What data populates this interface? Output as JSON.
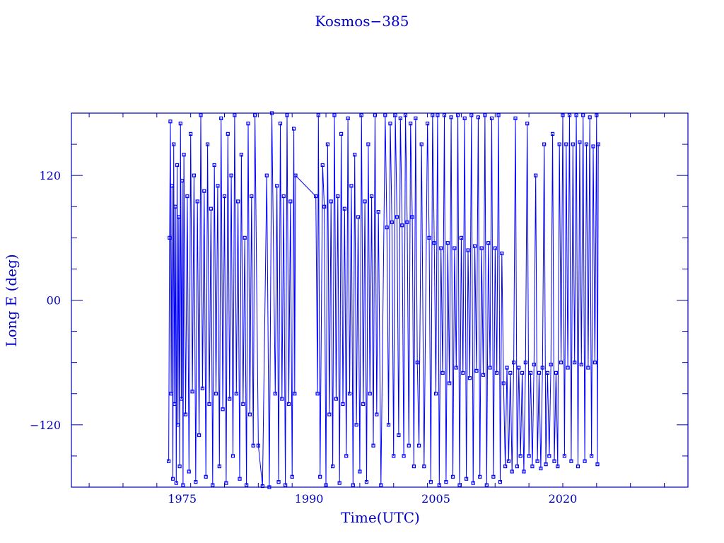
{
  "chart_data": {
    "type": "line",
    "title": "Kosmos−385",
    "xlabel": "Time(UTC)",
    "ylabel": "Long E (deg)",
    "xlim": [
      1961.9,
      2034.8
    ],
    "ylim": [
      -180,
      180
    ],
    "x_ticks": [
      1975,
      1990,
      2005,
      2020
    ],
    "x_tick_labels": [
      "1975",
      "1990",
      "2005",
      "2020"
    ],
    "y_ticks": [
      -120,
      0,
      120
    ],
    "y_tick_labels": [
      "−120",
      "00",
      "120"
    ],
    "grid": false,
    "marker": "square",
    "colors": {
      "series": "#0000ff",
      "axes": "#0000b4",
      "text": "#0000c8"
    },
    "series": [
      {
        "points": [
          [
            1973.4,
            -155
          ],
          [
            1973.5,
            60
          ],
          [
            1973.6,
            172
          ],
          [
            1973.7,
            -90
          ],
          [
            1973.8,
            110
          ],
          [
            1973.9,
            -172
          ],
          [
            1974.0,
            150
          ],
          [
            1974.1,
            -100
          ],
          [
            1974.2,
            90
          ],
          [
            1974.3,
            -176
          ],
          [
            1974.4,
            130
          ],
          [
            1974.5,
            -120
          ],
          [
            1974.6,
            80
          ],
          [
            1974.7,
            -160
          ],
          [
            1974.8,
            170
          ],
          [
            1974.9,
            -95
          ],
          [
            1975.0,
            115
          ],
          [
            1975.1,
            -178
          ],
          [
            1975.2,
            140
          ],
          [
            1975.4,
            -110
          ],
          [
            1975.6,
            100
          ],
          [
            1975.8,
            -165
          ],
          [
            1976.0,
            160
          ],
          [
            1976.2,
            -88
          ],
          [
            1976.4,
            120
          ],
          [
            1976.6,
            -175
          ],
          [
            1976.8,
            95
          ],
          [
            1977.0,
            -130
          ],
          [
            1977.2,
            178
          ],
          [
            1977.4,
            -85
          ],
          [
            1977.6,
            105
          ],
          [
            1977.8,
            -170
          ],
          [
            1978.0,
            150
          ],
          [
            1978.2,
            -100
          ],
          [
            1978.4,
            88
          ],
          [
            1978.6,
            -178
          ],
          [
            1978.8,
            130
          ],
          [
            1979.0,
            -90
          ],
          [
            1979.2,
            110
          ],
          [
            1979.4,
            -160
          ],
          [
            1979.6,
            175
          ],
          [
            1979.8,
            -105
          ],
          [
            1980.0,
            100
          ],
          [
            1980.2,
            -176
          ],
          [
            1980.4,
            160
          ],
          [
            1980.6,
            -95
          ],
          [
            1980.8,
            120
          ],
          [
            1981.0,
            -150
          ],
          [
            1981.2,
            178
          ],
          [
            1981.4,
            -90
          ],
          [
            1981.6,
            95
          ],
          [
            1981.8,
            -172
          ],
          [
            1982.0,
            140
          ],
          [
            1982.2,
            -100
          ],
          [
            1982.4,
            60
          ],
          [
            1982.6,
            -178
          ],
          [
            1982.8,
            170
          ],
          [
            1983.0,
            -110
          ],
          [
            1983.2,
            100
          ],
          [
            1983.4,
            -140
          ],
          [
            1983.6,
            178
          ],
          [
            1984.0,
            -140
          ],
          [
            1984.5,
            -179
          ],
          [
            1985.0,
            120
          ],
          [
            1985.3,
            -180
          ],
          [
            1985.6,
            180
          ],
          [
            1986.0,
            -90
          ],
          [
            1986.2,
            110
          ],
          [
            1986.4,
            -175
          ],
          [
            1986.6,
            170
          ],
          [
            1986.8,
            -95
          ],
          [
            1987.0,
            100
          ],
          [
            1987.2,
            -178
          ],
          [
            1987.4,
            178
          ],
          [
            1987.6,
            -100
          ],
          [
            1987.8,
            95
          ],
          [
            1988.0,
            -170
          ],
          [
            1988.2,
            165
          ],
          [
            1988.3,
            -90
          ],
          [
            1988.4,
            120
          ],
          [
            1990.8,
            100
          ],
          [
            1991.0,
            -90
          ],
          [
            1991.1,
            178
          ],
          [
            1991.3,
            -170
          ],
          [
            1991.6,
            130
          ],
          [
            1991.8,
            90
          ],
          [
            1992.0,
            -178
          ],
          [
            1992.2,
            150
          ],
          [
            1992.4,
            -110
          ],
          [
            1992.6,
            95
          ],
          [
            1992.8,
            -160
          ],
          [
            1993.0,
            178
          ],
          [
            1993.2,
            -95
          ],
          [
            1993.4,
            100
          ],
          [
            1993.6,
            -176
          ],
          [
            1993.8,
            160
          ],
          [
            1994.0,
            -100
          ],
          [
            1994.2,
            88
          ],
          [
            1994.4,
            -150
          ],
          [
            1994.6,
            175
          ],
          [
            1994.8,
            -90
          ],
          [
            1995.0,
            110
          ],
          [
            1995.2,
            -178
          ],
          [
            1995.4,
            140
          ],
          [
            1995.6,
            -120
          ],
          [
            1995.8,
            80
          ],
          [
            1996.0,
            -165
          ],
          [
            1996.2,
            178
          ],
          [
            1996.4,
            -100
          ],
          [
            1996.6,
            95
          ],
          [
            1996.8,
            -175
          ],
          [
            1997.0,
            150
          ],
          [
            1997.2,
            -90
          ],
          [
            1997.4,
            100
          ],
          [
            1997.6,
            -140
          ],
          [
            1997.8,
            178
          ],
          [
            1998.0,
            -110
          ],
          [
            1998.2,
            85
          ],
          [
            1998.5,
            -178
          ],
          [
            1999.0,
            178
          ],
          [
            1999.2,
            70
          ],
          [
            1999.4,
            -120
          ],
          [
            1999.6,
            170
          ],
          [
            1999.8,
            75
          ],
          [
            2000.0,
            -150
          ],
          [
            2000.2,
            178
          ],
          [
            2000.4,
            80
          ],
          [
            2000.6,
            -130
          ],
          [
            2000.8,
            175
          ],
          [
            2001.0,
            72
          ],
          [
            2001.2,
            -150
          ],
          [
            2001.4,
            178
          ],
          [
            2001.6,
            75
          ],
          [
            2001.8,
            -140
          ],
          [
            2002.0,
            170
          ],
          [
            2002.2,
            80
          ],
          [
            2002.4,
            -160
          ],
          [
            2002.6,
            175
          ],
          [
            2002.8,
            -60
          ],
          [
            2003.0,
            -140
          ],
          [
            2003.3,
            150
          ],
          [
            2003.6,
            -160
          ],
          [
            2004.0,
            170
          ],
          [
            2004.2,
            60
          ],
          [
            2004.4,
            -175
          ],
          [
            2004.6,
            178
          ],
          [
            2004.8,
            55
          ],
          [
            2005.0,
            -90
          ],
          [
            2005.2,
            178
          ],
          [
            2005.4,
            -178
          ],
          [
            2005.6,
            50
          ],
          [
            2005.8,
            -70
          ],
          [
            2006.0,
            178
          ],
          [
            2006.2,
            -175
          ],
          [
            2006.4,
            55
          ],
          [
            2006.6,
            -80
          ],
          [
            2006.8,
            176
          ],
          [
            2007.0,
            -170
          ],
          [
            2007.2,
            50
          ],
          [
            2007.4,
            -65
          ],
          [
            2007.6,
            178
          ],
          [
            2007.8,
            -178
          ],
          [
            2008.0,
            60
          ],
          [
            2008.2,
            -70
          ],
          [
            2008.4,
            175
          ],
          [
            2008.6,
            -172
          ],
          [
            2008.8,
            48
          ],
          [
            2009.0,
            -75
          ],
          [
            2009.2,
            178
          ],
          [
            2009.4,
            -176
          ],
          [
            2009.6,
            52
          ],
          [
            2009.8,
            -68
          ],
          [
            2010.0,
            176
          ],
          [
            2010.2,
            -170
          ],
          [
            2010.4,
            50
          ],
          [
            2010.6,
            -72
          ],
          [
            2010.8,
            178
          ],
          [
            2011.0,
            -178
          ],
          [
            2011.2,
            55
          ],
          [
            2011.4,
            -65
          ],
          [
            2011.6,
            175
          ],
          [
            2011.8,
            -170
          ],
          [
            2012.0,
            50
          ],
          [
            2012.2,
            -70
          ],
          [
            2012.4,
            178
          ],
          [
            2012.6,
            -175
          ],
          [
            2012.8,
            45
          ],
          [
            2013.0,
            -80
          ],
          [
            2013.2,
            -160
          ],
          [
            2013.4,
            -65
          ],
          [
            2013.6,
            -155
          ],
          [
            2013.8,
            -70
          ],
          [
            2014.0,
            -165
          ],
          [
            2014.2,
            -60
          ],
          [
            2014.4,
            175
          ],
          [
            2014.6,
            -160
          ],
          [
            2014.8,
            -65
          ],
          [
            2015.0,
            -150
          ],
          [
            2015.2,
            -70
          ],
          [
            2015.4,
            -165
          ],
          [
            2015.6,
            -60
          ],
          [
            2015.8,
            170
          ],
          [
            2016.0,
            -150
          ],
          [
            2016.2,
            -70
          ],
          [
            2016.4,
            -160
          ],
          [
            2016.6,
            -62
          ],
          [
            2016.8,
            120
          ],
          [
            2017.0,
            -155
          ],
          [
            2017.2,
            -70
          ],
          [
            2017.4,
            -162
          ],
          [
            2017.6,
            -65
          ],
          [
            2017.8,
            150
          ],
          [
            2018.0,
            -158
          ],
          [
            2018.2,
            -70
          ],
          [
            2018.4,
            -150
          ],
          [
            2018.6,
            -62
          ],
          [
            2018.8,
            160
          ],
          [
            2019.0,
            -155
          ],
          [
            2019.2,
            -70
          ],
          [
            2019.4,
            -160
          ],
          [
            2019.6,
            150
          ],
          [
            2019.8,
            -60
          ],
          [
            2020.0,
            178
          ],
          [
            2020.2,
            -150
          ],
          [
            2020.4,
            150
          ],
          [
            2020.6,
            -65
          ],
          [
            2020.8,
            178
          ],
          [
            2021.0,
            -155
          ],
          [
            2021.2,
            150
          ],
          [
            2021.4,
            -60
          ],
          [
            2021.6,
            178
          ],
          [
            2021.8,
            -160
          ],
          [
            2022.0,
            152
          ],
          [
            2022.2,
            -62
          ],
          [
            2022.4,
            178
          ],
          [
            2022.6,
            -155
          ],
          [
            2022.8,
            150
          ],
          [
            2023.0,
            -65
          ],
          [
            2023.2,
            176
          ],
          [
            2023.4,
            -150
          ],
          [
            2023.6,
            148
          ],
          [
            2023.8,
            -60
          ],
          [
            2024.0,
            178
          ],
          [
            2024.1,
            -158
          ],
          [
            2024.2,
            150
          ]
        ]
      }
    ]
  }
}
